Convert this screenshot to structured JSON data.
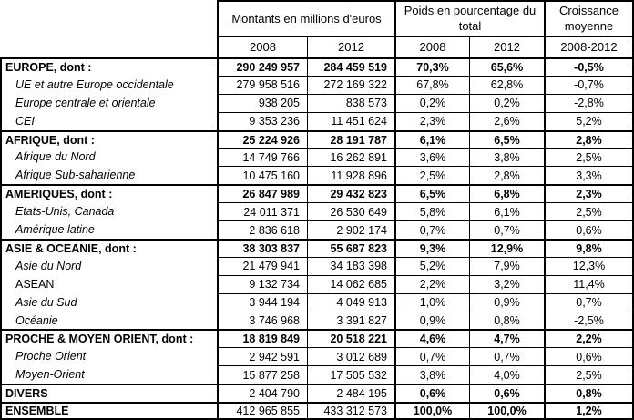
{
  "colors": {
    "border": "#000000",
    "text": "#000000",
    "background": "#ffffff"
  },
  "table": {
    "header": {
      "montants_label": "Montants en millions d'euros",
      "poids_label": "Poids en pourcentage du total",
      "croissance_label": "Croissance moyenne",
      "montants_years": [
        "2008",
        "2012"
      ],
      "poids_years": [
        "2008",
        "2012"
      ],
      "croissance_period": "2008-2012"
    },
    "rows": [
      {
        "label": "EUROPE, dont :",
        "style": "section",
        "m2008": "290 249 957",
        "m2012": "284 459 519",
        "p2008": "70,3%",
        "p2012": "65,6%",
        "growth": "-0,5%"
      },
      {
        "label": "UE et autre Europe occidentale",
        "style": "sub",
        "m2008": "279 958 516",
        "m2012": "272 169 322",
        "p2008": "67,8%",
        "p2012": "62,8%",
        "growth": "-0,7%"
      },
      {
        "label": "Europe centrale et orientale",
        "style": "sub",
        "m2008": "938 205",
        "m2012": "838 573",
        "p2008": "0,2%",
        "p2012": "0,2%",
        "growth": "-2,8%"
      },
      {
        "label": "CEI",
        "style": "sub",
        "m2008": "9 353 236",
        "m2012": "11 451 624",
        "p2008": "2,3%",
        "p2012": "2,6%",
        "growth": "5,2%"
      },
      {
        "label": "AFRIQUE, dont :",
        "style": "section",
        "m2008": "25 224 926",
        "m2012": "28 191 787",
        "p2008": "6,1%",
        "p2012": "6,5%",
        "growth": "2,8%"
      },
      {
        "label": "Afrique du Nord",
        "style": "sub",
        "m2008": "14 749 766",
        "m2012": "16 262 891",
        "p2008": "3,6%",
        "p2012": "3,8%",
        "growth": "2,5%"
      },
      {
        "label": "Afrique Sub-saharienne",
        "style": "sub",
        "m2008": "10 475 160",
        "m2012": "11 928 896",
        "p2008": "2,5%",
        "p2012": "2,8%",
        "growth": "3,3%"
      },
      {
        "label": "AMERIQUES, dont :",
        "style": "section",
        "m2008": "26 847 989",
        "m2012": "29 432 823",
        "p2008": "6,5%",
        "p2012": "6,8%",
        "growth": "2,3%"
      },
      {
        "label": "Etats-Unis, Canada",
        "style": "sub",
        "m2008": "24 011 371",
        "m2012": "26 530 649",
        "p2008": "5,8%",
        "p2012": "6,1%",
        "growth": "2,5%"
      },
      {
        "label": "Amérique latine",
        "style": "sub",
        "m2008": "2 836 618",
        "m2012": "2 902 174",
        "p2008": "0,7%",
        "p2012": "0,7%",
        "growth": "0,6%"
      },
      {
        "label": "ASIE & OCEANIE, dont :",
        "style": "section",
        "m2008": "38 303 837",
        "m2012": "55 687 823",
        "p2008": "9,3%",
        "p2012": "12,9%",
        "growth": "9,8%"
      },
      {
        "label": "Asie du Nord",
        "style": "sub",
        "m2008": "21 479 941",
        "m2012": "34 183 398",
        "p2008": "5,2%",
        "p2012": "7,9%",
        "growth": "12,3%"
      },
      {
        "label": "ASEAN",
        "style": "sub-plain",
        "m2008": "9 132 734",
        "m2012": "14 062 685",
        "p2008": "2,2%",
        "p2012": "3,2%",
        "growth": "11,4%"
      },
      {
        "label": "Asie du Sud",
        "style": "sub",
        "m2008": "3 944 194",
        "m2012": "4 049 913",
        "p2008": "1,0%",
        "p2012": "0,9%",
        "growth": "0,7%"
      },
      {
        "label": "Océanie",
        "style": "sub",
        "m2008": "3 746 968",
        "m2012": "3 391 827",
        "p2008": "0,9%",
        "p2012": "0,8%",
        "growth": "-2,5%"
      },
      {
        "label": "PROCHE & MOYEN ORIENT, dont :",
        "style": "section",
        "m2008": "18 819 849",
        "m2012": "20 518 221",
        "p2008": "4,6%",
        "p2012": "4,7%",
        "growth": "2,2%"
      },
      {
        "label": "Proche Orient",
        "style": "sub",
        "m2008": "2 942 591",
        "m2012": "3 012 689",
        "p2008": "0,7%",
        "p2012": "0,7%",
        "growth": "0,6%"
      },
      {
        "label": "Moyen-Orient",
        "style": "sub",
        "m2008": "15 877 258",
        "m2012": "17 505 532",
        "p2008": "3,8%",
        "p2012": "4,0%",
        "growth": "2,5%"
      },
      {
        "label": "DIVERS",
        "style": "total",
        "m2008": "2 404 790",
        "m2012": "2 484 195",
        "p2008": "0,6%",
        "p2012": "0,6%",
        "growth": "0,8%"
      },
      {
        "label": "ENSEMBLE",
        "style": "total",
        "m2008": "412 965 855",
        "m2012": "433 312 573",
        "p2008": "100,0%",
        "p2012": "100,0%",
        "growth": "1,2%"
      }
    ]
  }
}
